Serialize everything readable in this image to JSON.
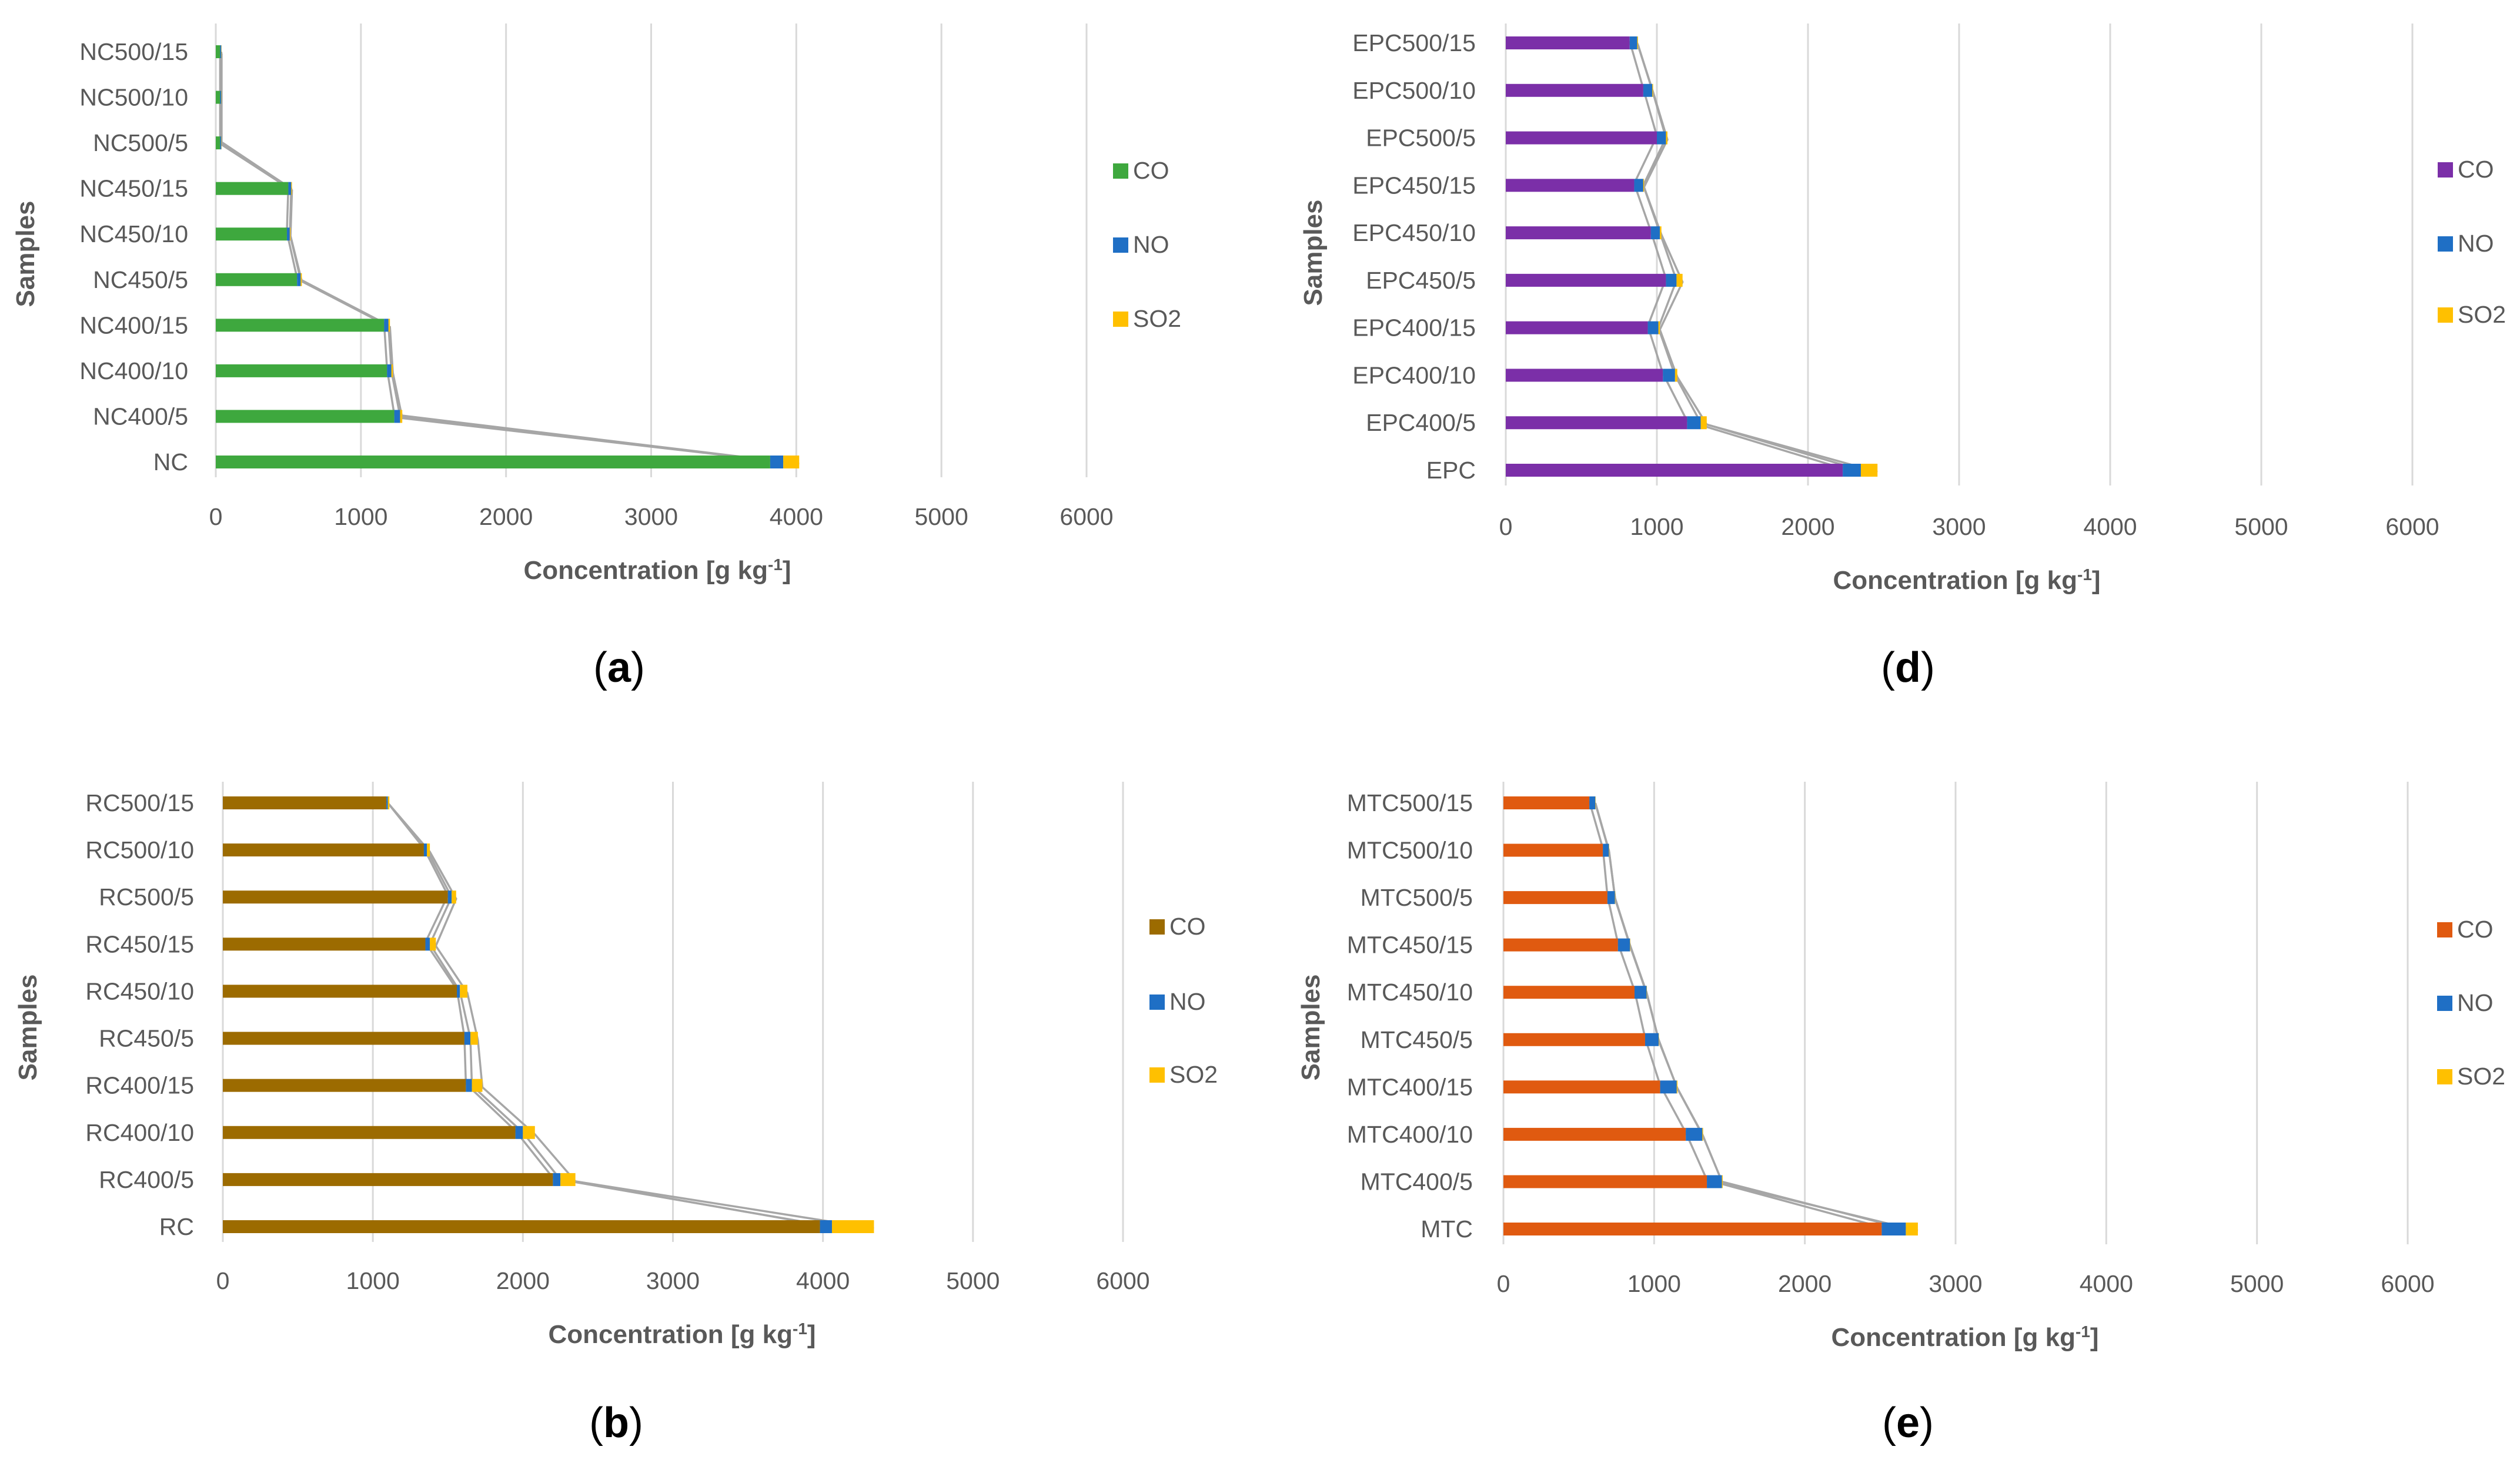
{
  "colors": {
    "grid": "#d9d9d9",
    "axis_text": "#595959",
    "connector": "#a6a6a6",
    "NO": "#1f6fc5",
    "SO2": "#ffc000",
    "caption": "#000000"
  },
  "chart_data": [
    {
      "id": "a",
      "type": "bar",
      "stacked": true,
      "orientation": "horizontal",
      "caption": "(a)",
      "xlabel": "Concentration [g kg",
      "xlabel_sup": "-1",
      "xlabel_end": "]",
      "ylabel": "Samples",
      "xlim": [
        0,
        6000
      ],
      "xticks": [
        0,
        1000,
        2000,
        3000,
        4000,
        5000,
        6000
      ],
      "co_color": "#3ea83e",
      "legend": [
        "CO",
        "NO",
        "SO2"
      ],
      "legend_position": "right",
      "categories": [
        "NC500/15",
        "NC500/10",
        "NC500/5",
        "NC450/15",
        "NC450/10",
        "NC450/5",
        "NC400/15",
        "NC400/10",
        "NC400/5",
        "NC"
      ],
      "series": [
        {
          "name": "CO",
          "values": [
            30,
            30,
            30,
            500,
            490,
            560,
            1160,
            1180,
            1230,
            3820
          ]
        },
        {
          "name": "NO",
          "values": [
            8,
            8,
            8,
            20,
            20,
            25,
            30,
            30,
            40,
            90
          ]
        },
        {
          "name": "SO2",
          "values": [
            2,
            2,
            2,
            5,
            5,
            8,
            10,
            10,
            15,
            110
          ]
        }
      ]
    },
    {
      "id": "d",
      "type": "bar",
      "stacked": true,
      "orientation": "horizontal",
      "caption": "(d)",
      "xlabel": "Concentration [g kg",
      "xlabel_sup": "-1",
      "xlabel_end": "]",
      "ylabel": "Samples",
      "xlim": [
        0,
        6000
      ],
      "xticks": [
        0,
        1000,
        2000,
        3000,
        4000,
        5000,
        6000
      ],
      "co_color": "#7b2fa8",
      "legend": [
        "CO",
        "NO",
        "SO2"
      ],
      "legend_position": "right",
      "categories": [
        "EPC500/15",
        "EPC500/10",
        "EPC500/5",
        "EPC450/15",
        "EPC450/10",
        "EPC450/5",
        "EPC400/15",
        "EPC400/10",
        "EPC400/5",
        "EPC"
      ],
      "series": [
        {
          "name": "CO",
          "values": [
            820,
            910,
            1000,
            850,
            960,
            1060,
            940,
            1040,
            1200,
            2230
          ]
        },
        {
          "name": "NO",
          "values": [
            50,
            60,
            60,
            60,
            60,
            70,
            70,
            80,
            90,
            120
          ]
        },
        {
          "name": "SO2",
          "values": [
            5,
            5,
            10,
            5,
            10,
            40,
            10,
            15,
            40,
            110
          ]
        }
      ]
    },
    {
      "id": "b",
      "type": "bar",
      "stacked": true,
      "orientation": "horizontal",
      "caption": "(b)",
      "xlabel": "Concentration [g kg",
      "xlabel_sup": "-1",
      "xlabel_end": "]",
      "ylabel": "Samples",
      "xlim": [
        0,
        6000
      ],
      "xticks": [
        0,
        1000,
        2000,
        3000,
        4000,
        5000,
        6000
      ],
      "co_color": "#9c6b00",
      "legend": [
        "CO",
        "NO",
        "SO2"
      ],
      "legend_position": "right",
      "categories": [
        "RC500/15",
        "RC500/10",
        "RC500/5",
        "RC450/15",
        "RC450/10",
        "RC450/5",
        "RC400/15",
        "RC400/10",
        "RC400/5",
        "RC"
      ],
      "series": [
        {
          "name": "CO",
          "values": [
            1090,
            1340,
            1500,
            1350,
            1560,
            1610,
            1620,
            1950,
            2200,
            3980
          ]
        },
        {
          "name": "NO",
          "values": [
            10,
            20,
            25,
            30,
            20,
            40,
            40,
            50,
            50,
            80
          ]
        },
        {
          "name": "SO2",
          "values": [
            10,
            20,
            30,
            40,
            50,
            50,
            70,
            80,
            100,
            280
          ]
        }
      ]
    },
    {
      "id": "e",
      "type": "bar",
      "stacked": true,
      "orientation": "horizontal",
      "caption": "(e)",
      "xlabel": "Concentration [g kg",
      "xlabel_sup": "-1",
      "xlabel_end": "]",
      "ylabel": "Samples",
      "xlim": [
        0,
        6000
      ],
      "xticks": [
        0,
        1000,
        2000,
        3000,
        4000,
        5000,
        6000
      ],
      "co_color": "#e05a10",
      "legend": [
        "CO",
        "NO",
        "SO2"
      ],
      "legend_position": "right",
      "categories": [
        "MTC500/15",
        "MTC500/10",
        "MTC500/5",
        "MTC450/15",
        "MTC450/10",
        "MTC450/5",
        "MTC400/15",
        "MTC400/10",
        "MTC400/5",
        "MTC"
      ],
      "series": [
        {
          "name": "CO",
          "values": [
            570,
            660,
            690,
            760,
            870,
            940,
            1040,
            1210,
            1350,
            2510
          ]
        },
        {
          "name": "NO",
          "values": [
            40,
            40,
            50,
            80,
            80,
            90,
            110,
            110,
            100,
            160
          ]
        },
        {
          "name": "SO2",
          "values": [
            2,
            2,
            2,
            2,
            2,
            2,
            5,
            5,
            5,
            80
          ]
        }
      ]
    }
  ]
}
